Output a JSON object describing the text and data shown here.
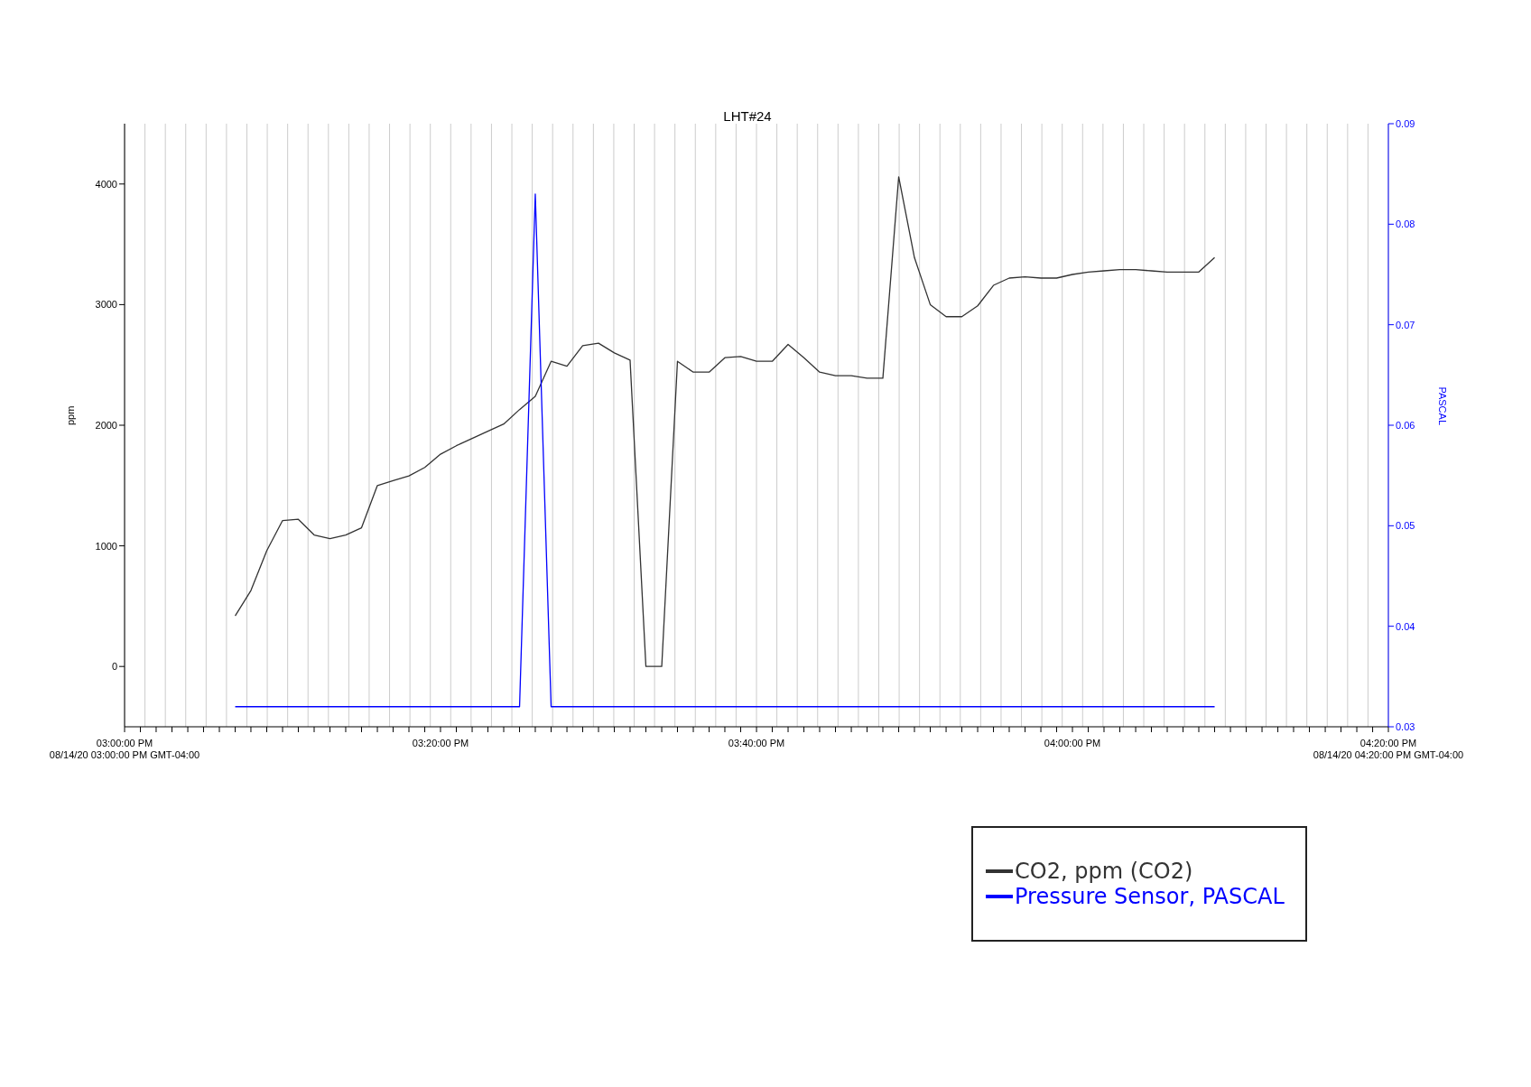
{
  "chart_data": {
    "type": "line",
    "title": "LHT#24",
    "ylabel": "ppm",
    "y2label": "PASCAL",
    "x": [
      15.1167,
      15.1333,
      15.15,
      15.1667,
      15.1833,
      15.2,
      15.2167,
      15.2333,
      15.25,
      15.2667,
      15.2833,
      15.3,
      15.3167,
      15.3333,
      15.35,
      15.3667,
      15.3833,
      15.4,
      15.4167,
      15.4333,
      15.45,
      15.4667,
      15.4833,
      15.5,
      15.5167,
      15.5333,
      15.55,
      15.5667,
      15.5833,
      15.6,
      15.6167,
      15.6333,
      15.65,
      15.6667,
      15.6833,
      15.7,
      15.7167,
      15.7333,
      15.75,
      15.7667,
      15.7833,
      15.8,
      15.8167,
      15.8333,
      15.85,
      15.8667,
      15.8833,
      15.9,
      15.9167,
      15.9333,
      15.95,
      15.9667,
      15.9833,
      16,
      16.0167,
      16.0333,
      16.05,
      16.0667,
      16.0833,
      16.1,
      16.1167,
      16.1333,
      16.15
    ],
    "series": [
      {
        "name": "CO2, ppm (CO2)",
        "color": "#333333",
        "values": [
          420,
          630,
          960,
          1210,
          1220,
          1090,
          1060,
          1090,
          1150,
          1500,
          1540,
          1580,
          1650,
          1760,
          1830,
          1890,
          1950,
          2010,
          2130,
          2240,
          2530,
          2490,
          2660,
          2680,
          2600,
          2540,
          0,
          0,
          2530,
          2440,
          2440,
          2560,
          2570,
          2530,
          2530,
          2670,
          2560,
          2440,
          2410,
          2410,
          2390,
          2390,
          4060,
          3390,
          3000,
          2900,
          2900,
          2990,
          3160,
          3220,
          3230,
          3220,
          3220,
          3250,
          3270,
          3280,
          3290,
          3290,
          3280,
          3270,
          3270,
          3270,
          3390
        ]
      },
      {
        "name": "Pressure Sensor, PASCAL",
        "color": "#0000ff",
        "axis": "y2",
        "values": [
          0.032,
          0.032,
          0.032,
          0.032,
          0.032,
          0.032,
          0.032,
          0.032,
          0.032,
          0.032,
          0.032,
          0.032,
          0.032,
          0.032,
          0.032,
          0.032,
          0.032,
          0.032,
          0.032,
          0.083,
          0.032,
          0.032,
          0.032,
          0.032,
          0.032,
          0.032,
          0.032,
          0.032,
          0.032,
          0.032,
          0.032,
          0.032,
          0.032,
          0.032,
          0.032,
          0.032,
          0.032,
          0.032,
          0.032,
          0.032,
          0.032,
          0.032,
          0.032,
          0.032,
          0.032,
          0.032,
          0.032,
          0.032,
          0.032,
          0.032,
          0.032,
          0.032,
          0.032,
          0.032,
          0.032,
          0.032,
          0.032,
          0.032,
          0.032,
          0.032,
          0.032,
          0.032,
          0.032
        ]
      }
    ],
    "xlim": [
      15,
      16.3333
    ],
    "xticks": [
      {
        "value": 15,
        "label": "03:00:00 PM\n08/14/20 03:00:00 PM GMT-04:00"
      },
      {
        "value": 15.0167,
        "label": null
      },
      {
        "value": 15.0333,
        "label": null
      },
      {
        "value": 15.05,
        "label": null
      },
      {
        "value": 15.0667,
        "label": null
      },
      {
        "value": 15.0833,
        "label": null
      },
      {
        "value": 15.1,
        "label": null
      },
      {
        "value": 15.1167,
        "label": null
      },
      {
        "value": 15.1333,
        "label": null
      },
      {
        "value": 15.15,
        "label": null
      },
      {
        "value": 15.1667,
        "label": null
      },
      {
        "value": 15.1833,
        "label": null
      },
      {
        "value": 15.2,
        "label": null
      },
      {
        "value": 15.2167,
        "label": null
      },
      {
        "value": 15.2333,
        "label": null
      },
      {
        "value": 15.25,
        "label": null
      },
      {
        "value": 15.2667,
        "label": null
      },
      {
        "value": 15.2833,
        "label": null
      },
      {
        "value": 15.3,
        "label": null
      },
      {
        "value": 15.3167,
        "label": null
      },
      {
        "value": 15.3333,
        "label": "03:20:00 PM"
      },
      {
        "value": 15.35,
        "label": null
      },
      {
        "value": 15.3667,
        "label": null
      },
      {
        "value": 15.3833,
        "label": null
      },
      {
        "value": 15.4,
        "label": null
      },
      {
        "value": 15.4167,
        "label": null
      },
      {
        "value": 15.4333,
        "label": null
      },
      {
        "value": 15.45,
        "label": null
      },
      {
        "value": 15.4667,
        "label": null
      },
      {
        "value": 15.4833,
        "label": null
      },
      {
        "value": 15.5,
        "label": null
      },
      {
        "value": 15.5167,
        "label": null
      },
      {
        "value": 15.5333,
        "label": null
      },
      {
        "value": 15.55,
        "label": null
      },
      {
        "value": 15.5667,
        "label": null
      },
      {
        "value": 15.5833,
        "label": null
      },
      {
        "value": 15.6,
        "label": null
      },
      {
        "value": 15.6167,
        "label": null
      },
      {
        "value": 15.6333,
        "label": null
      },
      {
        "value": 15.65,
        "label": null
      },
      {
        "value": 15.6667,
        "label": "03:40:00 PM"
      },
      {
        "value": 15.6833,
        "label": null
      },
      {
        "value": 15.7,
        "label": null
      },
      {
        "value": 15.7167,
        "label": null
      },
      {
        "value": 15.7333,
        "label": null
      },
      {
        "value": 15.75,
        "label": null
      },
      {
        "value": 15.7667,
        "label": null
      },
      {
        "value": 15.7833,
        "label": null
      },
      {
        "value": 15.8,
        "label": null
      },
      {
        "value": 15.8167,
        "label": null
      },
      {
        "value": 15.8333,
        "label": null
      },
      {
        "value": 15.85,
        "label": null
      },
      {
        "value": 15.8667,
        "label": null
      },
      {
        "value": 15.8833,
        "label": null
      },
      {
        "value": 15.9,
        "label": null
      },
      {
        "value": 15.9167,
        "label": null
      },
      {
        "value": 15.9333,
        "label": null
      },
      {
        "value": 15.95,
        "label": null
      },
      {
        "value": 15.9667,
        "label": null
      },
      {
        "value": 15.9833,
        "label": null
      },
      {
        "value": 16,
        "label": "04:00:00 PM"
      },
      {
        "value": 16.0167,
        "label": null
      },
      {
        "value": 16.0333,
        "label": null
      },
      {
        "value": 16.05,
        "label": null
      },
      {
        "value": 16.0667,
        "label": null
      },
      {
        "value": 16.0833,
        "label": null
      },
      {
        "value": 16.1,
        "label": null
      },
      {
        "value": 16.1167,
        "label": null
      },
      {
        "value": 16.1333,
        "label": null
      },
      {
        "value": 16.15,
        "label": null
      },
      {
        "value": 16.1667,
        "label": null
      },
      {
        "value": 16.1833,
        "label": null
      },
      {
        "value": 16.2,
        "label": null
      },
      {
        "value": 16.2167,
        "label": null
      },
      {
        "value": 16.2333,
        "label": null
      },
      {
        "value": 16.25,
        "label": null
      },
      {
        "value": 16.2667,
        "label": null
      },
      {
        "value": 16.2833,
        "label": null
      },
      {
        "value": 16.3,
        "label": null
      },
      {
        "value": 16.3167,
        "label": null
      },
      {
        "value": 16.3333,
        "label": "04:20:00 PM\n08/14/20 04:20:00 PM GMT-04:00"
      }
    ],
    "ylim": [
      -500,
      4500
    ],
    "yticks": [
      0,
      1000,
      2000,
      3000,
      4000
    ],
    "y2lim": [
      0.03,
      0.09
    ],
    "y2ticks": [
      0.03,
      0.04,
      0.05,
      0.06,
      0.07,
      0.08,
      0.09
    ],
    "grid": "x",
    "legend": "bottom right",
    "marker": "none",
    "line_style": "solid"
  }
}
